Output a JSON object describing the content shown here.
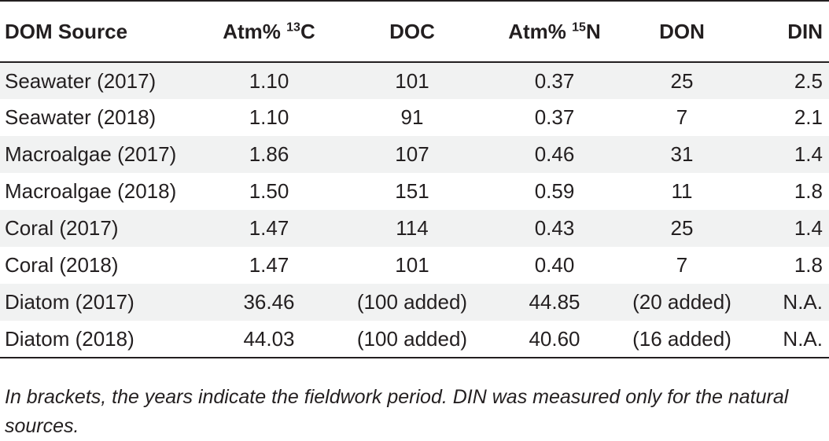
{
  "table": {
    "headers": {
      "source": "DOM Source",
      "c13_prefix": "Atm% ",
      "c13_sup": "13",
      "c13_suffix": "C",
      "doc": "DOC",
      "n15_prefix": "Atm% ",
      "n15_sup": "15",
      "n15_suffix": "N",
      "don": "DON",
      "din": "DIN"
    },
    "rows": [
      {
        "source": "Seawater (2017)",
        "c13": "1.10",
        "doc": "101",
        "n15": "0.37",
        "don": "25",
        "din": "2.5"
      },
      {
        "source": "Seawater (2018)",
        "c13": "1.10",
        "doc": "91",
        "n15": "0.37",
        "don": "7",
        "din": "2.1"
      },
      {
        "source": "Macroalgae (2017)",
        "c13": "1.86",
        "doc": "107",
        "n15": "0.46",
        "don": "31",
        "din": "1.4"
      },
      {
        "source": "Macroalgae (2018)",
        "c13": "1.50",
        "doc": "151",
        "n15": "0.59",
        "don": "11",
        "din": "1.8"
      },
      {
        "source": "Coral (2017)",
        "c13": "1.47",
        "doc": "114",
        "n15": "0.43",
        "don": "25",
        "din": "1.4"
      },
      {
        "source": "Coral (2018)",
        "c13": "1.47",
        "doc": "101",
        "n15": "0.40",
        "don": "7",
        "din": "1.8"
      },
      {
        "source": "Diatom (2017)",
        "c13": "36.46",
        "doc": "(100 added)",
        "n15": "44.85",
        "don": "(20 added)",
        "din": "N.A."
      },
      {
        "source": "Diatom (2018)",
        "c13": "44.03",
        "doc": "(100 added)",
        "n15": "40.60",
        "don": "(16 added)",
        "din": "N.A."
      }
    ]
  },
  "footnote": "In brackets, the years indicate the fieldwork period. DIN was measured only for the natural sources."
}
